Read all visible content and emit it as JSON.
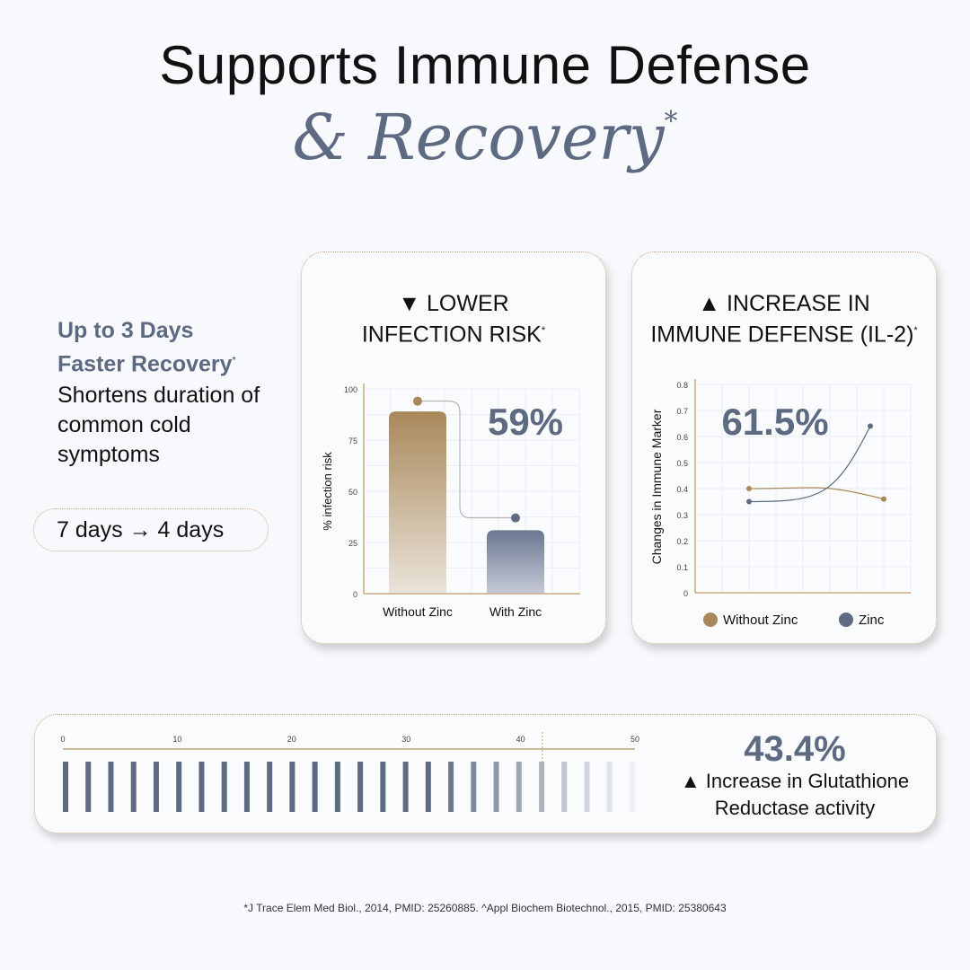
{
  "header": {
    "title_line1": "Supports Immune Defense",
    "title_line2": "& Recovery",
    "title_mark": "*"
  },
  "left": {
    "headline_1": "Up to 3 Days",
    "headline_2": "Faster Recovery",
    "headline_mark": "*",
    "body": "Shortens duration of common cold symptoms",
    "pill": "7 days → 4 days"
  },
  "card1": {
    "title_1": "▼ LOWER",
    "title_2": "INFECTION RISK",
    "title_mark": "*",
    "stat": "59%"
  },
  "card2": {
    "title_1": "▲ INCREASE IN",
    "title_2": "IMMUNE DEFENSE (IL-2)",
    "title_mark": "*",
    "stat": "61.5%"
  },
  "card3": {
    "stat": "43.4%",
    "desc_1": "▲ Increase in Glutathione",
    "desc_2": "Reductase activity"
  },
  "footnote": "*J Trace Elem Med Biol., 2014, PMID: 25260885. ^Appl Biochem Biotechnol., 2015, PMID: 25380643",
  "colors": {
    "gold": "#a8885a",
    "slate": "#5d6a82",
    "border": "#c9a985"
  },
  "chart_data": [
    {
      "type": "bar",
      "title": "LOWER INFECTION RISK",
      "ylabel": "% infection risk",
      "categories": [
        "Without Zinc",
        "With Zinc"
      ],
      "values": [
        89,
        31
      ],
      "markers": [
        94,
        37
      ],
      "ylim": [
        0,
        100
      ],
      "yticks": [
        0,
        25,
        50,
        75,
        100
      ],
      "annotation": "59%"
    },
    {
      "type": "line",
      "title": "INCREASE IN IMMUNE DEFENSE (IL-2)",
      "ylabel": "Changes in Immune Marker",
      "ylim": [
        0,
        0.8
      ],
      "xlim": [
        0,
        8
      ],
      "yticks": [
        "0",
        "0.1",
        "0.2",
        "0.3",
        "0.4",
        "0.5",
        "0.6",
        "0.7",
        "0.8"
      ],
      "series": [
        {
          "name": "Without Zinc",
          "x": [
            2,
            7
          ],
          "y": [
            0.4,
            0.36
          ]
        },
        {
          "name": "Zinc",
          "x": [
            2,
            6.5
          ],
          "y": [
            0.35,
            0.64
          ]
        }
      ],
      "annotation": "61.5%",
      "legend": "bottom"
    },
    {
      "type": "bar",
      "title": "Glutathione Reductase activity",
      "xlim": [
        0,
        50
      ],
      "xticks": [
        "0",
        "10",
        "20",
        "30",
        "40",
        "50"
      ],
      "bar_count": 26,
      "value": 43.4
    }
  ]
}
